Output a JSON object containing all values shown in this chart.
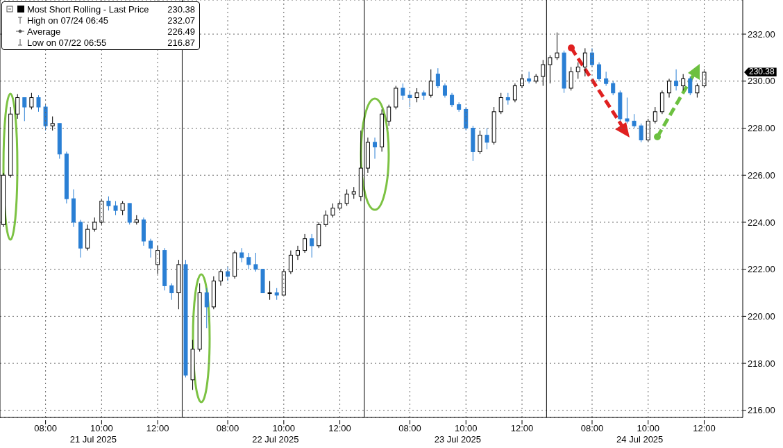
{
  "chart_data": {
    "type": "candlestick",
    "legend": "top left",
    "grid": true,
    "categories": [
      null,
      null,
      null,
      null,
      null,
      null,
      "08:00",
      null,
      null,
      null,
      null,
      null,
      null,
      null,
      "10:00",
      null,
      null,
      null,
      null,
      null,
      null,
      null,
      "12:00",
      null,
      null,
      null,
      null,
      null,
      null,
      null,
      null,
      null,
      "08:00",
      null,
      null,
      null,
      null,
      null,
      null,
      null,
      "10:00",
      null,
      null,
      null,
      null,
      null,
      null,
      null,
      "12:00",
      null,
      null,
      null,
      null,
      null,
      null,
      null,
      null,
      null,
      "08:00",
      null,
      null,
      null,
      null,
      null,
      null,
      null,
      "10:00",
      null,
      null,
      null,
      null,
      null,
      null,
      null,
      "12:00",
      null,
      null,
      null,
      null,
      null,
      null,
      null,
      null,
      null,
      "08:00",
      null,
      null,
      null,
      null,
      null,
      null,
      null,
      "10:00",
      null,
      null,
      null,
      null,
      null,
      null,
      null,
      "12:00",
      null,
      null,
      null,
      null,
      null
    ],
    "ylim": [
      215.7,
      233.45
    ],
    "yticks": [
      {
        "value": 216,
        "label": "216.00"
      },
      {
        "value": 218,
        "label": "218.00"
      },
      {
        "value": 220,
        "label": "220.00"
      },
      {
        "value": 222,
        "label": "222.00"
      },
      {
        "value": 224,
        "label": "224.00"
      },
      {
        "value": 226,
        "label": "226.00"
      },
      {
        "value": 228,
        "label": "228.00"
      },
      {
        "value": 230,
        "label": "230.00"
      },
      {
        "value": 232,
        "label": "232.00"
      }
    ],
    "annotations": [
      "21 Jul 2025",
      "22 Jul 2025",
      "23 Jul 2025",
      "24 Jul 2025",
      "230.38",
      "High on 07/24 06:45",
      "232.07",
      "Average",
      "226.49",
      "Low on 07/22 06:55",
      "216.87",
      "230.38"
    ],
    "series": [
      {
        "name": "Most Short Rolling - Last Price",
        "color": "#000000",
        "colors": [
          "#000000",
          "#000000",
          "#000000",
          "#2a7fd4",
          "#000000",
          "#2a7fd4",
          "#2a7fd4",
          "#000000",
          "#2a7fd4",
          "#2a7fd4",
          "#2a7fd4",
          "#2a7fd4",
          "#000000",
          "#000000",
          "#000000",
          "#2a7fd4",
          "#2a7fd4",
          "#000000",
          "#2a7fd4",
          "#000000",
          "#2a7fd4",
          "#2a7fd4",
          "#000000",
          "#2a7fd4",
          "#2a7fd4",
          "#000000",
          "#2a7fd4",
          "#000000",
          "#000000",
          "#2a7fd4",
          "#000000",
          "#000000",
          "#2a7fd4",
          "#000000",
          "#2a7fd4",
          "#2a7fd4",
          "#2a7fd4",
          "#2a7fd4",
          "#000000",
          "#2a7fd4",
          "#000000",
          "#000000",
          "#000000",
          "#000000",
          "#2a7fd4",
          "#000000",
          "#000000",
          "#000000",
          "#000000",
          "#000000",
          "#000000",
          "#000000",
          "#000000",
          "#2a7fd4",
          "#000000",
          "#000000",
          "#000000",
          "#2a7fd4",
          "#2a7fd4",
          "#000000",
          "#2a7fd4",
          "#000000",
          "#2a7fd4",
          "#2a7fd4",
          "#2a7fd4",
          "#2a7fd4",
          "#2a7fd4",
          "#2a7fd4",
          "#000000",
          "#2a7fd4",
          "#000000",
          "#000000",
          "#2a7fd4",
          "#000000",
          "#000000",
          "#2a7fd4",
          "#000000",
          "#000000",
          "#000000",
          "#000000",
          "#2a7fd4",
          "#000000",
          "#000000",
          "#000000",
          "#2a7fd4",
          "#2a7fd4",
          "#2a7fd4",
          "#2a7fd4",
          "#2a7fd4",
          "#2a7fd4",
          "#2a7fd4",
          "#2a7fd4",
          "#000000",
          "#000000",
          "#000000",
          "#000000",
          "#2a7fd4",
          "#000000",
          "#2a7fd4",
          "#000000",
          "#000000",
          null,
          null,
          null,
          null,
          null
        ],
        "ohlc": [
          [
            223.9,
            226.1,
            223.8,
            226.0
          ],
          [
            226.0,
            228.9,
            225.9,
            228.6
          ],
          [
            228.6,
            229.45,
            228.4,
            229.3
          ],
          [
            229.3,
            229.3,
            228.3,
            228.9
          ],
          [
            228.9,
            229.5,
            228.8,
            229.3
          ],
          [
            229.3,
            229.4,
            228.7,
            228.9
          ],
          [
            228.9,
            229.0,
            227.9,
            228.1
          ],
          [
            228.1,
            228.5,
            227.9,
            228.2
          ],
          [
            228.2,
            228.2,
            226.7,
            226.9
          ],
          [
            226.9,
            227.0,
            224.8,
            225.0
          ],
          [
            225.0,
            225.4,
            223.8,
            224.0
          ],
          [
            224.0,
            224.1,
            222.5,
            222.9
          ],
          [
            222.9,
            223.9,
            222.8,
            223.7
          ],
          [
            223.7,
            224.2,
            223.6,
            224.0
          ],
          [
            224.0,
            225.0,
            223.9,
            224.9
          ],
          [
            224.9,
            225.1,
            224.5,
            224.7
          ],
          [
            224.7,
            224.9,
            224.3,
            224.5
          ],
          [
            224.5,
            224.9,
            224.3,
            224.8
          ],
          [
            224.8,
            224.8,
            223.9,
            224.0
          ],
          [
            224.0,
            224.3,
            223.9,
            224.1
          ],
          [
            224.1,
            224.2,
            223.0,
            223.2
          ],
          [
            223.2,
            223.3,
            222.5,
            222.9
          ],
          [
            222.2,
            223.0,
            221.8,
            222.8
          ],
          [
            222.8,
            222.9,
            221.1,
            221.3
          ],
          [
            221.3,
            221.4,
            220.7,
            221.0
          ],
          [
            221.0,
            222.4,
            220.3,
            222.2
          ],
          [
            222.2,
            222.4,
            217.4,
            217.5
          ],
          [
            217.3,
            219.0,
            216.87,
            218.6
          ],
          [
            218.6,
            221.4,
            218.5,
            221.0
          ],
          [
            221.0,
            221.2,
            219.5,
            220.4
          ],
          [
            220.4,
            221.7,
            220.3,
            221.5
          ],
          [
            221.5,
            222.0,
            221.3,
            221.9
          ],
          [
            221.9,
            222.1,
            221.5,
            221.7
          ],
          [
            221.7,
            222.8,
            221.6,
            222.7
          ],
          [
            222.7,
            222.9,
            222.3,
            222.5
          ],
          [
            222.5,
            222.7,
            222.0,
            222.2
          ],
          [
            222.2,
            222.7,
            221.9,
            222.0
          ],
          [
            222.0,
            222.0,
            221.0,
            221.0
          ],
          [
            221.0,
            221.5,
            220.7,
            221.0
          ],
          [
            221.0,
            221.2,
            220.7,
            220.9
          ],
          [
            220.9,
            222.0,
            220.9,
            221.9
          ],
          [
            221.9,
            222.8,
            221.8,
            222.6
          ],
          [
            222.6,
            223.0,
            222.4,
            222.8
          ],
          [
            222.8,
            223.5,
            222.7,
            223.3
          ],
          [
            223.3,
            223.5,
            222.5,
            223.0
          ],
          [
            223.0,
            224.0,
            222.9,
            223.9
          ],
          [
            223.9,
            224.5,
            223.8,
            224.3
          ],
          [
            224.3,
            224.8,
            224.2,
            224.6
          ],
          [
            224.6,
            224.9,
            224.5,
            224.8
          ],
          [
            224.8,
            225.4,
            224.7,
            225.2
          ],
          [
            225.2,
            225.5,
            225.0,
            225.3
          ],
          [
            225.1,
            227.9,
            224.9,
            226.3
          ],
          [
            226.3,
            227.6,
            226.1,
            227.4
          ],
          [
            227.4,
            227.6,
            226.7,
            227.2
          ],
          [
            227.2,
            228.8,
            227.0,
            228.6
          ],
          [
            228.3,
            229.0,
            228.1,
            228.9
          ],
          [
            228.9,
            229.8,
            228.8,
            229.7
          ],
          [
            229.7,
            229.9,
            229.2,
            229.4
          ],
          [
            229.4,
            229.6,
            228.9,
            229.3
          ],
          [
            229.3,
            229.7,
            229.1,
            229.5
          ],
          [
            229.5,
            229.6,
            229.2,
            229.4
          ],
          [
            229.4,
            230.5,
            229.3,
            230.0
          ],
          [
            230.3,
            230.55,
            229.7,
            229.8
          ],
          [
            229.8,
            229.9,
            229.3,
            229.4
          ],
          [
            229.4,
            229.5,
            228.9,
            229.0
          ],
          [
            229.0,
            229.1,
            228.7,
            228.8
          ],
          [
            228.8,
            228.9,
            227.9,
            228.0
          ],
          [
            228.0,
            228.1,
            226.6,
            227.0
          ],
          [
            227.0,
            227.9,
            226.9,
            227.7
          ],
          [
            227.7,
            228.0,
            227.1,
            227.4
          ],
          [
            227.4,
            228.9,
            227.3,
            228.7
          ],
          [
            228.7,
            229.5,
            228.6,
            229.3
          ],
          [
            229.3,
            229.5,
            229.0,
            229.2
          ],
          [
            229.2,
            229.9,
            229.1,
            229.8
          ],
          [
            229.8,
            230.3,
            229.7,
            230.1
          ],
          [
            230.1,
            230.4,
            229.9,
            230.0
          ],
          [
            230.0,
            230.3,
            229.9,
            230.2
          ],
          [
            230.2,
            230.9,
            229.8,
            230.7
          ],
          [
            230.7,
            231.1,
            229.9,
            231.0
          ],
          [
            231.0,
            232.07,
            230.9,
            231.2
          ],
          [
            231.2,
            231.3,
            229.5,
            229.7
          ],
          [
            229.7,
            230.6,
            229.6,
            230.4
          ],
          [
            230.4,
            230.8,
            230.1,
            230.6
          ],
          [
            230.6,
            231.4,
            230.2,
            231.2
          ],
          [
            231.2,
            231.4,
            230.6,
            230.7
          ],
          [
            230.7,
            230.8,
            230.0,
            230.1
          ],
          [
            230.1,
            230.4,
            229.8,
            229.9
          ],
          [
            229.9,
            230.0,
            229.4,
            229.5
          ],
          [
            229.5,
            229.6,
            228.3,
            228.4
          ],
          [
            228.4,
            229.3,
            228.2,
            228.3
          ],
          [
            228.3,
            228.6,
            228.0,
            228.1
          ],
          [
            228.1,
            228.2,
            227.4,
            227.5
          ],
          [
            227.5,
            228.4,
            227.4,
            228.3
          ],
          [
            228.3,
            228.9,
            228.2,
            228.7
          ],
          [
            228.7,
            229.6,
            228.6,
            229.5
          ],
          [
            229.5,
            230.1,
            229.3,
            230.0
          ],
          [
            230.0,
            230.5,
            229.6,
            229.8
          ],
          [
            229.8,
            230.3,
            229.6,
            230.1
          ],
          [
            230.1,
            230.2,
            229.4,
            229.5
          ],
          [
            229.5,
            229.9,
            229.3,
            229.8
          ],
          [
            229.8,
            230.5,
            229.7,
            230.38
          ],
          null,
          null,
          null,
          null,
          null
        ]
      }
    ]
  }
}
